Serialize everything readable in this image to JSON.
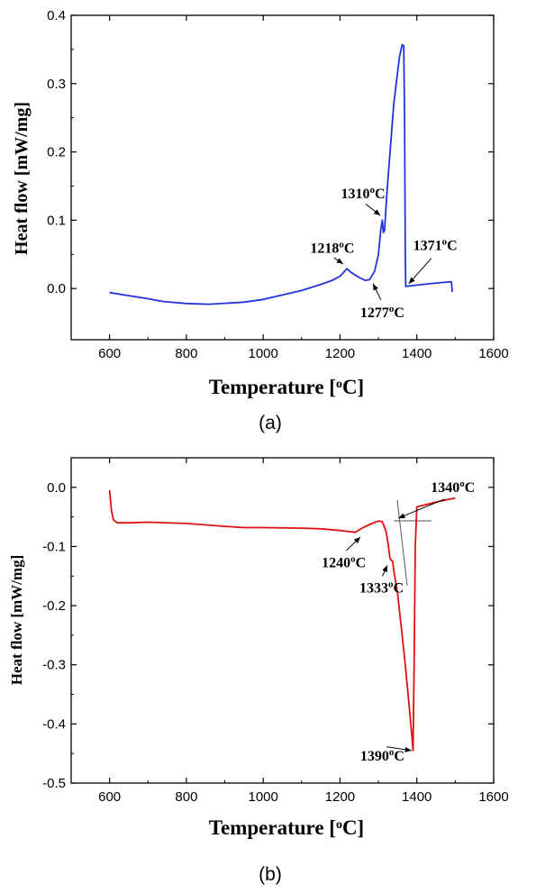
{
  "chart_data": [
    {
      "type": "line",
      "caption": "(a)",
      "xlabel": "Temperature [",
      "xlabel_sup": "o",
      "xlabel_end": "C]",
      "ylabel": "Heat flow [mW/mg]",
      "xlim": [
        500,
        1600
      ],
      "ylim": [
        -0.075,
        0.4
      ],
      "xticks": [
        "600",
        "800",
        "1000",
        "1200",
        "1400",
        "1600"
      ],
      "yticks": [
        "0.0",
        "0.1",
        "0.2",
        "0.3",
        "0.4"
      ],
      "series": [
        {
          "color": "#2233dd",
          "x": [
            600,
            700,
            740,
            800,
            860,
            950,
            1000,
            1100,
            1150,
            1180,
            1200,
            1210,
            1218,
            1230,
            1250,
            1265,
            1277,
            1290,
            1300,
            1306,
            1310,
            1313,
            1316,
            1322,
            1340,
            1355,
            1362,
            1366,
            1368,
            1370,
            1371,
            1400,
            1450,
            1490,
            1492
          ],
          "y": [
            -0.006,
            -0.015,
            -0.019,
            -0.022,
            -0.023,
            -0.02,
            -0.016,
            -0.003,
            0.006,
            0.012,
            0.018,
            0.024,
            0.029,
            0.023,
            0.016,
            0.012,
            0.013,
            0.025,
            0.05,
            0.085,
            0.1,
            0.082,
            0.085,
            0.14,
            0.27,
            0.34,
            0.357,
            0.355,
            0.25,
            0.05,
            0.003,
            0.005,
            0.008,
            0.01,
            -0.005
          ]
        }
      ],
      "annotations": [
        {
          "text": "1218",
          "sup": "o",
          "unit": "C",
          "x": 1218,
          "y": 0.029
        },
        {
          "text": "1310",
          "sup": "o",
          "unit": "C",
          "x": 1310,
          "y": 0.1
        },
        {
          "text": "1371",
          "sup": "o",
          "unit": "C",
          "x": 1371,
          "y": 0.003
        },
        {
          "text": "1277",
          "sup": "o",
          "unit": "C",
          "x": 1277,
          "y": 0.013
        }
      ]
    },
    {
      "type": "line",
      "caption": "(b)",
      "xlabel": "Temperature [",
      "xlabel_sup": "o",
      "xlabel_end": "C]",
      "ylabel": "Heat flow [mW/mg]",
      "xlim": [
        500,
        1600
      ],
      "ylim": [
        -0.5,
        0.05
      ],
      "xticks": [
        "600",
        "800",
        "1000",
        "1200",
        "1400",
        "1600"
      ],
      "yticks": [
        "0.0",
        "-0.1",
        "-0.2",
        "-0.3",
        "-0.4",
        "-0.5"
      ],
      "series": [
        {
          "color": "#dd1111",
          "x": [
            600,
            602,
            605,
            610,
            620,
            650,
            700,
            800,
            900,
            950,
            1000,
            1100,
            1150,
            1200,
            1240,
            1260,
            1280,
            1300,
            1310,
            1320,
            1325,
            1330,
            1333,
            1337,
            1340,
            1350,
            1360,
            1370,
            1380,
            1387,
            1390,
            1393,
            1396,
            1400,
            1450,
            1500
          ],
          "y": [
            -0.005,
            -0.02,
            -0.04,
            -0.055,
            -0.06,
            -0.06,
            -0.059,
            -0.061,
            -0.066,
            -0.068,
            -0.068,
            -0.069,
            -0.07,
            -0.073,
            -0.076,
            -0.068,
            -0.062,
            -0.057,
            -0.058,
            -0.075,
            -0.095,
            -0.12,
            -0.123,
            -0.125,
            -0.14,
            -0.18,
            -0.24,
            -0.3,
            -0.37,
            -0.42,
            -0.445,
            -0.3,
            -0.1,
            -0.033,
            -0.025,
            -0.018
          ]
        }
      ],
      "annotations": [
        {
          "text": "1340",
          "sup": "o",
          "unit": "C",
          "x": 1340,
          "y": -0.057
        },
        {
          "text": "1240",
          "sup": "o",
          "unit": "C",
          "x": 1240,
          "y": -0.076
        },
        {
          "text": "1333",
          "sup": "o",
          "unit": "C",
          "x": 1333,
          "y": -0.123
        },
        {
          "text": "1390",
          "sup": "o",
          "unit": "C",
          "x": 1390,
          "y": -0.445
        }
      ]
    }
  ]
}
